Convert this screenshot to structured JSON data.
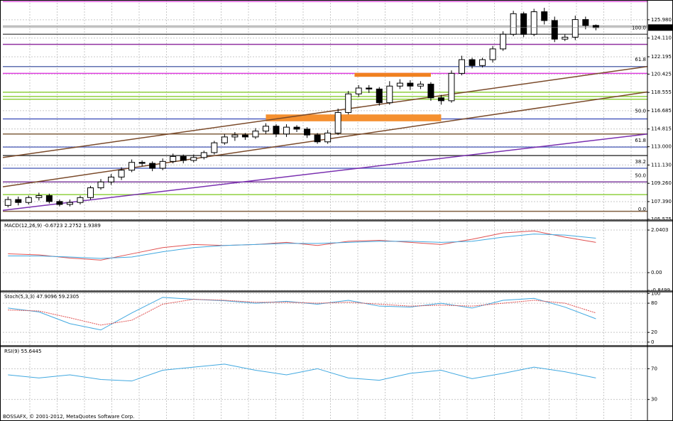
{
  "chart_data": [
    {
      "type": "candlestick",
      "xlim": [
        -0.5,
        62
      ],
      "ylim": [
        105.5,
        128
      ],
      "yticks": [
        {
          "value": 125.98,
          "label": "125.980"
        },
        {
          "value": 124.11,
          "label": "124.110"
        },
        {
          "value": 122.195,
          "label": "122.195"
        },
        {
          "value": 120.425,
          "label": "120.425"
        },
        {
          "value": 118.555,
          "label": "118.555"
        },
        {
          "value": 116.685,
          "label": "116.685"
        },
        {
          "value": 114.815,
          "label": "114.815"
        },
        {
          "value": 113,
          "label": "113.000"
        },
        {
          "value": 111.13,
          "label": "111.130"
        },
        {
          "value": 109.26,
          "label": "109.260"
        },
        {
          "value": 107.39,
          "label": "107.390"
        },
        {
          "value": 105.575,
          "label": "105.575"
        }
      ],
      "grid": true,
      "last_price": 125.183,
      "open": [
        107.0,
        107.6,
        107.3,
        107.8,
        108.0,
        107.4,
        107.1,
        107.3,
        107.8,
        108.8,
        109.4,
        109.9,
        110.6,
        111.4,
        111.3,
        110.8,
        111.5,
        112.0,
        111.6,
        111.9,
        112.4,
        113.4,
        114.0,
        114.2,
        114.0,
        114.6,
        115.1,
        114.3,
        115.0,
        114.8,
        114.2,
        113.5,
        114.4,
        116.5,
        118.4,
        119.0,
        118.9,
        117.5,
        119.2,
        119.5,
        119.2,
        119.4,
        118.0,
        117.7,
        120.5,
        121.9,
        121.3,
        121.9,
        123.0,
        124.5,
        126.6,
        124.5,
        126.8,
        125.9,
        124.0,
        124.2,
        126.0,
        125.4
      ],
      "high": [
        107.9,
        107.9,
        108.0,
        108.3,
        108.2,
        107.6,
        107.6,
        108.0,
        109.0,
        109.7,
        110.2,
        110.9,
        111.7,
        111.6,
        111.5,
        111.8,
        112.3,
        112.2,
        112.2,
        112.6,
        113.6,
        114.3,
        114.5,
        114.4,
        114.9,
        115.4,
        115.3,
        115.3,
        115.2,
        115.0,
        114.4,
        114.7,
        116.9,
        118.7,
        119.3,
        119.3,
        119.1,
        119.7,
        119.9,
        119.8,
        119.7,
        119.6,
        118.3,
        120.8,
        122.3,
        122.1,
        122.1,
        123.3,
        124.8,
        126.9,
        126.8,
        127.1,
        127.2,
        126.3,
        124.5,
        126.4,
        126.3,
        125.5
      ],
      "low": [
        106.8,
        107.0,
        107.1,
        107.5,
        107.2,
        106.9,
        106.9,
        107.1,
        107.6,
        108.6,
        109.1,
        109.6,
        110.4,
        111.0,
        110.5,
        110.6,
        111.3,
        111.3,
        111.4,
        111.7,
        112.2,
        113.2,
        113.6,
        113.7,
        113.8,
        114.3,
        114.0,
        114.0,
        114.5,
        113.9,
        113.3,
        113.3,
        114.2,
        116.3,
        118.1,
        118.5,
        117.2,
        117.3,
        118.9,
        118.8,
        118.9,
        117.7,
        117.3,
        117.5,
        120.3,
        121.0,
        121.1,
        121.6,
        122.8,
        124.3,
        124.2,
        124.3,
        125.5,
        123.7,
        123.8,
        123.9,
        125.0,
        124.9
      ],
      "close": [
        107.6,
        107.3,
        107.8,
        108.0,
        107.4,
        107.1,
        107.3,
        107.8,
        108.8,
        109.4,
        109.9,
        110.6,
        111.4,
        111.3,
        110.8,
        111.5,
        112.0,
        111.6,
        111.9,
        112.4,
        113.4,
        114.0,
        114.2,
        114.0,
        114.6,
        115.1,
        114.3,
        115.0,
        114.8,
        114.2,
        113.5,
        114.4,
        116.5,
        118.4,
        119.0,
        118.9,
        117.5,
        119.2,
        119.5,
        119.2,
        119.4,
        118.0,
        117.7,
        120.5,
        121.9,
        121.3,
        121.9,
        123.0,
        124.5,
        126.6,
        124.5,
        126.8,
        125.9,
        124.0,
        124.2,
        126.0,
        125.4,
        125.183
      ],
      "levels": [
        {
          "value": 127.84,
          "color": "#e060e0"
        },
        {
          "value": 125.33,
          "color": "#a0a0a0"
        },
        {
          "value": 124.5,
          "color": "#606060"
        },
        {
          "value": 123.46,
          "color": "#9030a0"
        },
        {
          "value": 121.2,
          "color": "#6070b0"
        },
        {
          "value": 120.5,
          "color": "#e040e0"
        },
        {
          "value": 118.57,
          "color": "#90d040"
        },
        {
          "value": 118.14,
          "color": "#90d040"
        },
        {
          "value": 117.86,
          "color": "#90d040"
        },
        {
          "value": 115.84,
          "color": "#5060c0"
        },
        {
          "value": 114.3,
          "color": "#806040"
        },
        {
          "value": 112.97,
          "color": "#6070c0"
        },
        {
          "value": 112.1,
          "color": "#404040"
        },
        {
          "value": 110.8,
          "color": "#6070c0"
        },
        {
          "value": 109.4,
          "color": "#8040a0"
        },
        {
          "value": 108.1,
          "color": "#90d040"
        },
        {
          "value": 106.4,
          "color": "#806040"
        }
      ],
      "zones": [
        {
          "x": [
            33.6,
            41
          ],
          "y": [
            120.15,
            120.55
          ],
          "color": "#f08020"
        },
        {
          "x": [
            25,
            42
          ],
          "y": [
            115.6,
            116.3
          ],
          "color": "#f59030"
        }
      ],
      "trendlines": [
        {
          "x": [
            -0.5,
            62
          ],
          "y": [
            111.9,
            121.2
          ],
          "color": "#7a4a2a"
        },
        {
          "x": [
            -0.5,
            62
          ],
          "y": [
            108.9,
            118.6
          ],
          "color": "#7a4a2a"
        },
        {
          "x": [
            -0.5,
            62
          ],
          "y": [
            106.5,
            114.3
          ],
          "color": "#7a30b0"
        }
      ],
      "fib_labels": [
        {
          "label": "100.0",
          "value": 124.83
        },
        {
          "label": "61.8",
          "value": 121.6
        },
        {
          "label": "50.0",
          "value": 116.34
        },
        {
          "label": "61.8",
          "value": 113.33
        },
        {
          "label": "38.2",
          "value": 111.17
        },
        {
          "label": "50.0",
          "value": 109.73
        },
        {
          "label": "0.0",
          "value": 106.3
        }
      ]
    },
    {
      "type": "line",
      "title": "MACD(12,26,9) -0.6723 2.2752 1.9389",
      "xlim": [
        -0.5,
        62
      ],
      "ylim": [
        -0.85,
        2.45
      ],
      "yticks": [
        2.0403,
        {
          "value": 0,
          "label": "0.00"
        },
        -0.8499
      ],
      "x": [
        0,
        3,
        6,
        9,
        12,
        15,
        18,
        21,
        24,
        27,
        30,
        33,
        36,
        39,
        42,
        45,
        48,
        51,
        54,
        57
      ],
      "series": [
        {
          "name": "MACD",
          "color": "#e05050",
          "values": [
            0.9,
            0.85,
            0.7,
            0.6,
            0.9,
            1.2,
            1.35,
            1.3,
            1.35,
            1.45,
            1.3,
            1.5,
            1.55,
            1.45,
            1.35,
            1.6,
            1.9,
            2.0,
            1.7,
            1.45
          ]
        },
        {
          "name": "Signal",
          "color": "#40a8e0",
          "values": [
            0.8,
            0.8,
            0.75,
            0.68,
            0.75,
            1.0,
            1.2,
            1.3,
            1.35,
            1.4,
            1.4,
            1.45,
            1.5,
            1.5,
            1.45,
            1.5,
            1.7,
            1.85,
            1.8,
            1.65
          ]
        }
      ]
    },
    {
      "type": "line",
      "title": "Stoch(5,3,3) 47.9096 59.2305",
      "xlim": [
        -0.5,
        62
      ],
      "ylim": [
        -6,
        102
      ],
      "yticks": [
        100,
        80,
        20,
        0
      ],
      "x": [
        0,
        3,
        6,
        9,
        12,
        15,
        18,
        21,
        24,
        27,
        30,
        33,
        36,
        39,
        42,
        45,
        48,
        51,
        54,
        57
      ],
      "series": [
        {
          "name": "Main",
          "color": "#40a8e0",
          "values": [
            70,
            62,
            38,
            25,
            60,
            92,
            88,
            85,
            80,
            84,
            78,
            86,
            74,
            72,
            80,
            70,
            86,
            90,
            72,
            48
          ]
        },
        {
          "name": "Signal",
          "color": "#e05050",
          "values": [
            66,
            64,
            50,
            35,
            45,
            78,
            88,
            86,
            82,
            82,
            80,
            82,
            78,
            74,
            76,
            74,
            80,
            86,
            80,
            60
          ]
        }
      ]
    },
    {
      "type": "line",
      "title": "RSI(9) 55.6445",
      "xlim": [
        -0.5,
        62
      ],
      "ylim": [
        2,
        98
      ],
      "yticks": [
        70,
        30
      ],
      "x": [
        0,
        3,
        6,
        9,
        12,
        15,
        18,
        21,
        24,
        27,
        30,
        33,
        36,
        39,
        42,
        45,
        48,
        51,
        54,
        57
      ],
      "series": [
        {
          "name": "RSI",
          "color": "#40a8e0",
          "values": [
            62,
            58,
            62,
            56,
            54,
            68,
            72,
            76,
            68,
            62,
            70,
            58,
            55,
            64,
            68,
            57,
            64,
            72,
            66,
            58
          ]
        }
      ]
    }
  ],
  "footer": "BOSSAFX, © 2001-2012, MetaQuotes Software Corp."
}
